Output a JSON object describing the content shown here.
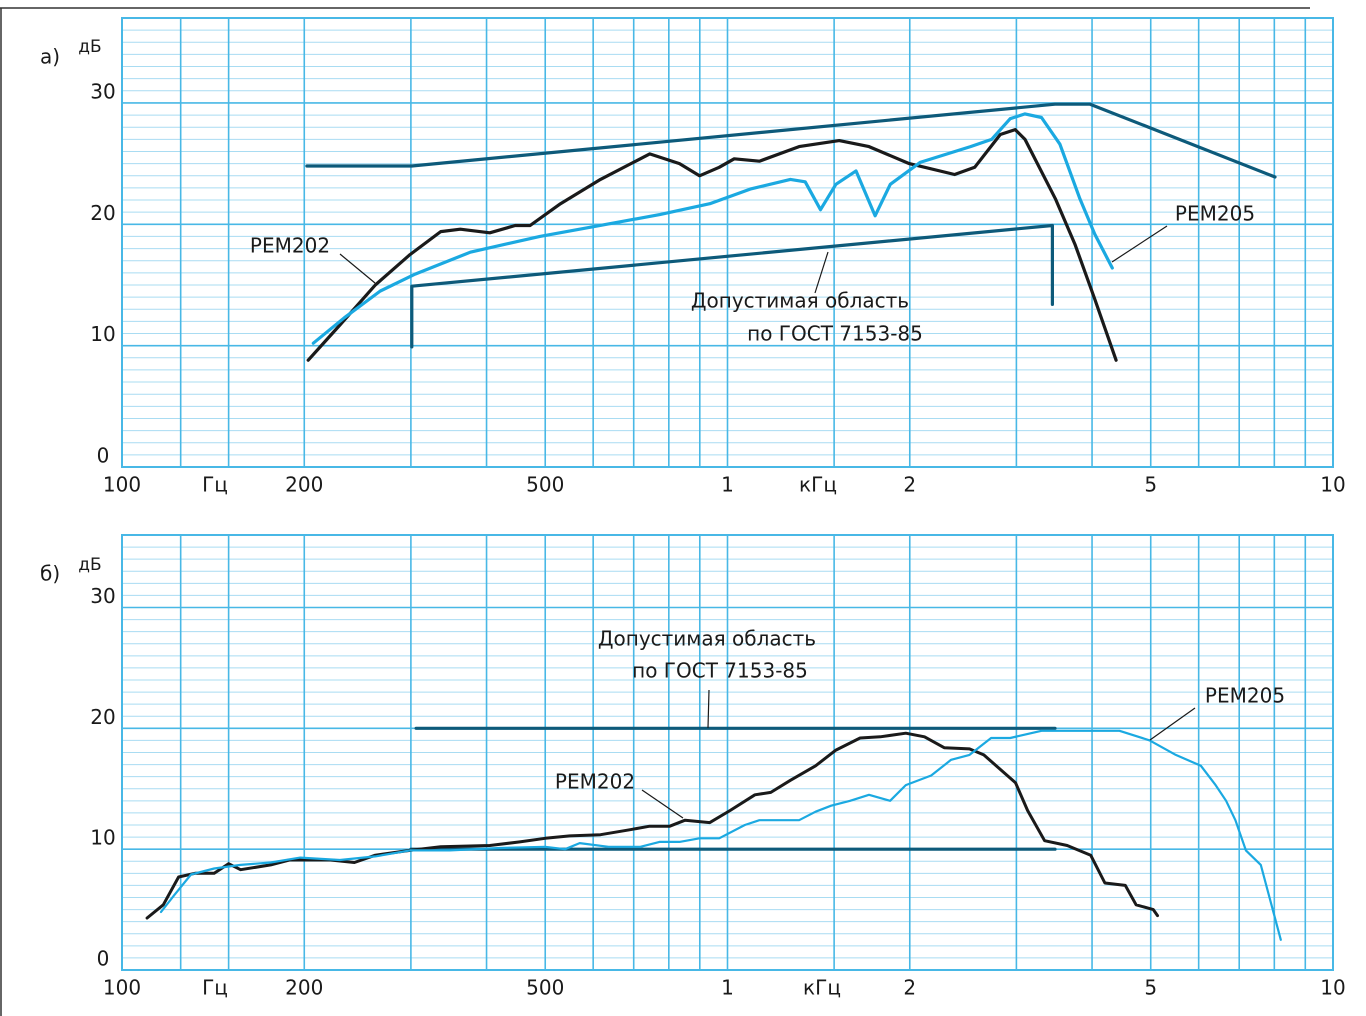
{
  "chart_data": [
    {
      "type": "line",
      "panel_label": "а)",
      "y_label": "дБ",
      "x_label": "Гц",
      "x_label_khz": "кГц",
      "log_x": true,
      "grid": true,
      "xlim": [
        100,
        10000
      ],
      "ylim": [
        0,
        37
      ],
      "xticks": [
        100,
        200,
        500,
        {
          "value": 1000,
          "label": "1"
        },
        {
          "value": 2000,
          "label": "2"
        },
        {
          "value": 5000,
          "label": "5"
        },
        {
          "value": 10000,
          "label": "10"
        }
      ],
      "xgrid": [
        125,
        150,
        300,
        400,
        600,
        700,
        800,
        900,
        1500,
        3000,
        4000,
        6000,
        7000,
        8000,
        9000
      ],
      "yticks": [
        0,
        10,
        20,
        30
      ],
      "series": [
        {
          "name": "РЕМ202",
          "color": "#1a1a1a",
          "x": [
            203,
            229,
            262,
            299,
            336,
            362,
            405,
            446,
            472,
            530,
            617,
            744,
            833,
            899,
            969,
            1026,
            1129,
            1313,
            1529,
            1713,
            1996,
            2372,
            2560,
            2822,
            2986,
            3100,
            3480,
            3752,
            4043,
            4383
          ],
          "values": [
            8.8,
            11.7,
            15.0,
            17.5,
            19.4,
            19.6,
            19.3,
            19.9,
            19.9,
            21.7,
            23.7,
            25.8,
            25.0,
            24.0,
            24.7,
            25.4,
            25.2,
            26.4,
            26.9,
            26.4,
            25.0,
            24.1,
            24.7,
            27.4,
            27.8,
            27.0,
            22.1,
            18.3,
            13.8,
            8.8
          ]
        },
        {
          "name": "РЕМ205",
          "color": "#1ba9e1",
          "x": [
            207,
            233,
            267,
            305,
            376,
            490,
            663,
            773,
            935,
            1090,
            1270,
            1344,
            1424,
            1510,
            1630,
            1753,
            1857,
            2080,
            2520,
            2730,
            2930,
            3100,
            3300,
            3540,
            3820,
            4040,
            4320
          ],
          "values": [
            10.2,
            12.3,
            14.5,
            15.9,
            17.7,
            19.0,
            20.2,
            20.8,
            21.7,
            22.9,
            23.7,
            23.5,
            21.2,
            23.3,
            24.4,
            20.7,
            23.3,
            25.1,
            26.4,
            27.0,
            28.7,
            29.1,
            28.8,
            26.6,
            22.1,
            19.2,
            16.4
          ]
        }
      ],
      "tolerance": {
        "label_lines": [
          "Допустимая область",
          "по ГОСТ 7153-85"
        ],
        "color": "#0d5a7a",
        "upper": {
          "x": [
            202,
            301,
            3475,
            3970,
            8020
          ],
          "values": [
            24.8,
            24.8,
            29.9,
            29.9,
            23.9
          ]
        },
        "lower": {
          "x": [
            301,
            301,
            3440,
            3440
          ],
          "values": [
            9.9,
            14.9,
            19.9,
            13.4
          ]
        }
      }
    },
    {
      "type": "line",
      "panel_label": "б)",
      "y_label": "дБ",
      "x_label": "Гц",
      "x_label_khz": "кГц",
      "log_x": true,
      "grid": true,
      "xlim": [
        100,
        10000
      ],
      "ylim": [
        0,
        36
      ],
      "xticks": [
        100,
        200,
        500,
        {
          "value": 1000,
          "label": "1"
        },
        {
          "value": 2000,
          "label": "2"
        },
        {
          "value": 5000,
          "label": "5"
        },
        {
          "value": 10000,
          "label": "10"
        }
      ],
      "xgrid": [
        125,
        150,
        300,
        400,
        600,
        700,
        800,
        900,
        1500,
        3000,
        4000,
        6000,
        7000,
        8000,
        9000
      ],
      "yticks": [
        0,
        10,
        20,
        30
      ],
      "series": [
        {
          "name": "РЕМ202",
          "color": "#1a1a1a",
          "x": [
            110,
            117,
            124,
            132,
            142,
            150,
            157,
            176,
            189,
            200,
            221,
            242,
            262,
            299,
            336,
            405,
            454,
            500,
            549,
            617,
            689,
            744,
            803,
            851,
            935,
            1010,
            1110,
            1179,
            1270,
            1398,
            1510,
            1656,
            1788,
            1970,
            2115,
            2280,
            2510,
            2650,
            2990,
            3130,
            3340,
            3640,
            3980,
            4200,
            4540,
            4730,
            5050,
            5130
          ],
          "values": [
            4.3,
            5.4,
            7.7,
            8.0,
            8.0,
            8.8,
            8.3,
            8.7,
            9.1,
            9.1,
            9.1,
            8.9,
            9.5,
            9.9,
            10.2,
            10.3,
            10.6,
            10.9,
            11.1,
            11.2,
            11.6,
            11.9,
            11.9,
            12.4,
            12.2,
            13.2,
            14.5,
            14.7,
            15.7,
            16.9,
            18.2,
            19.2,
            19.3,
            19.6,
            19.3,
            18.4,
            18.3,
            17.8,
            15.5,
            13.2,
            10.7,
            10.3,
            9.5,
            7.2,
            7.0,
            5.4,
            5.0,
            4.5
          ]
        },
        {
          "name": "РЕМ205",
          "color": "#1ba9e1",
          "x": [
            116,
            122,
            130,
            142,
            157,
            176,
            197,
            229,
            262,
            299,
            348,
            421,
            500,
            539,
            570,
            636,
            718,
            772,
            833,
            899,
            969,
            1068,
            1129,
            1313,
            1398,
            1483,
            1594,
            1713,
            1856,
            1970,
            2170,
            2340,
            2510,
            2725,
            2930,
            3300,
            3820,
            4440,
            4980,
            5500,
            6050,
            6400,
            6660,
            6900,
            7180,
            7600,
            8200
          ],
          "values": [
            4.8,
            6.2,
            7.9,
            8.4,
            8.7,
            8.9,
            9.3,
            9.1,
            9.4,
            9.9,
            9.9,
            10.1,
            10.2,
            10.0,
            10.5,
            10.2,
            10.2,
            10.6,
            10.6,
            10.9,
            10.9,
            12.0,
            12.4,
            12.4,
            13.1,
            13.6,
            14.0,
            14.5,
            14.0,
            15.3,
            16.1,
            17.4,
            17.8,
            19.2,
            19.2,
            19.8,
            19.8,
            19.8,
            19.0,
            17.8,
            16.9,
            15.3,
            14.0,
            12.4,
            9.9,
            8.7,
            2.5
          ]
        }
      ],
      "tolerance": {
        "label_lines": [
          "Допустимая область",
          "по ГОСТ 7153-85"
        ],
        "color": "#0d5a7a",
        "upper": {
          "x": [
            306,
            3475
          ],
          "values": [
            20,
            20
          ]
        },
        "lower": {
          "x": [
            300,
            3475
          ],
          "values": [
            10,
            10
          ]
        }
      }
    }
  ]
}
